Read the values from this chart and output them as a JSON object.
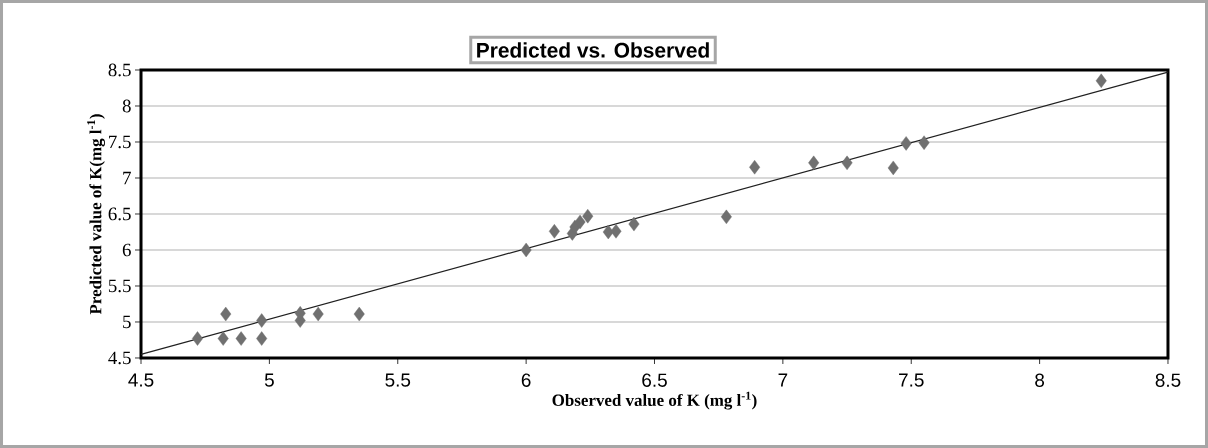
{
  "chart_data": {
    "type": "scatter",
    "title": "Predicted vs. Observed",
    "xlabel": "Observed value of K (mg l$^{-1}$)",
    "ylabel": "Predicted value of K(mg l$^{-1}$)",
    "xlim": [
      4.5,
      8.5
    ],
    "ylim": [
      4.5,
      8.5
    ],
    "xticks": [
      4.5,
      5,
      5.5,
      6,
      6.5,
      7,
      7.5,
      8,
      8.5
    ],
    "yticks": [
      4.5,
      5,
      5.5,
      6,
      6.5,
      7,
      7.5,
      8,
      8.5
    ],
    "grid": "y",
    "series": [
      {
        "marker": "diamond",
        "color": "#707070",
        "x": [
          4.72,
          4.83,
          4.82,
          4.89,
          4.97,
          4.97,
          5.12,
          5.12,
          5.19,
          5.35,
          6.0,
          6.11,
          6.18,
          6.19,
          6.21,
          6.24,
          6.32,
          6.35,
          6.42,
          6.78,
          6.89,
          7.12,
          7.25,
          7.43,
          7.48,
          7.55,
          8.24
        ],
        "values": [
          4.77,
          5.11,
          4.77,
          4.77,
          4.77,
          5.02,
          5.02,
          5.12,
          5.11,
          5.11,
          6.0,
          6.26,
          6.23,
          6.32,
          6.39,
          6.47,
          6.25,
          6.26,
          6.36,
          6.46,
          7.15,
          7.21,
          7.21,
          7.14,
          7.48,
          7.49,
          8.35
        ]
      },
      {
        "type": "line",
        "marker": "none",
        "line_style": "solid",
        "color": "#202020",
        "x": [
          4.5,
          8.5
        ],
        "values": [
          4.55,
          8.47
        ]
      }
    ]
  }
}
